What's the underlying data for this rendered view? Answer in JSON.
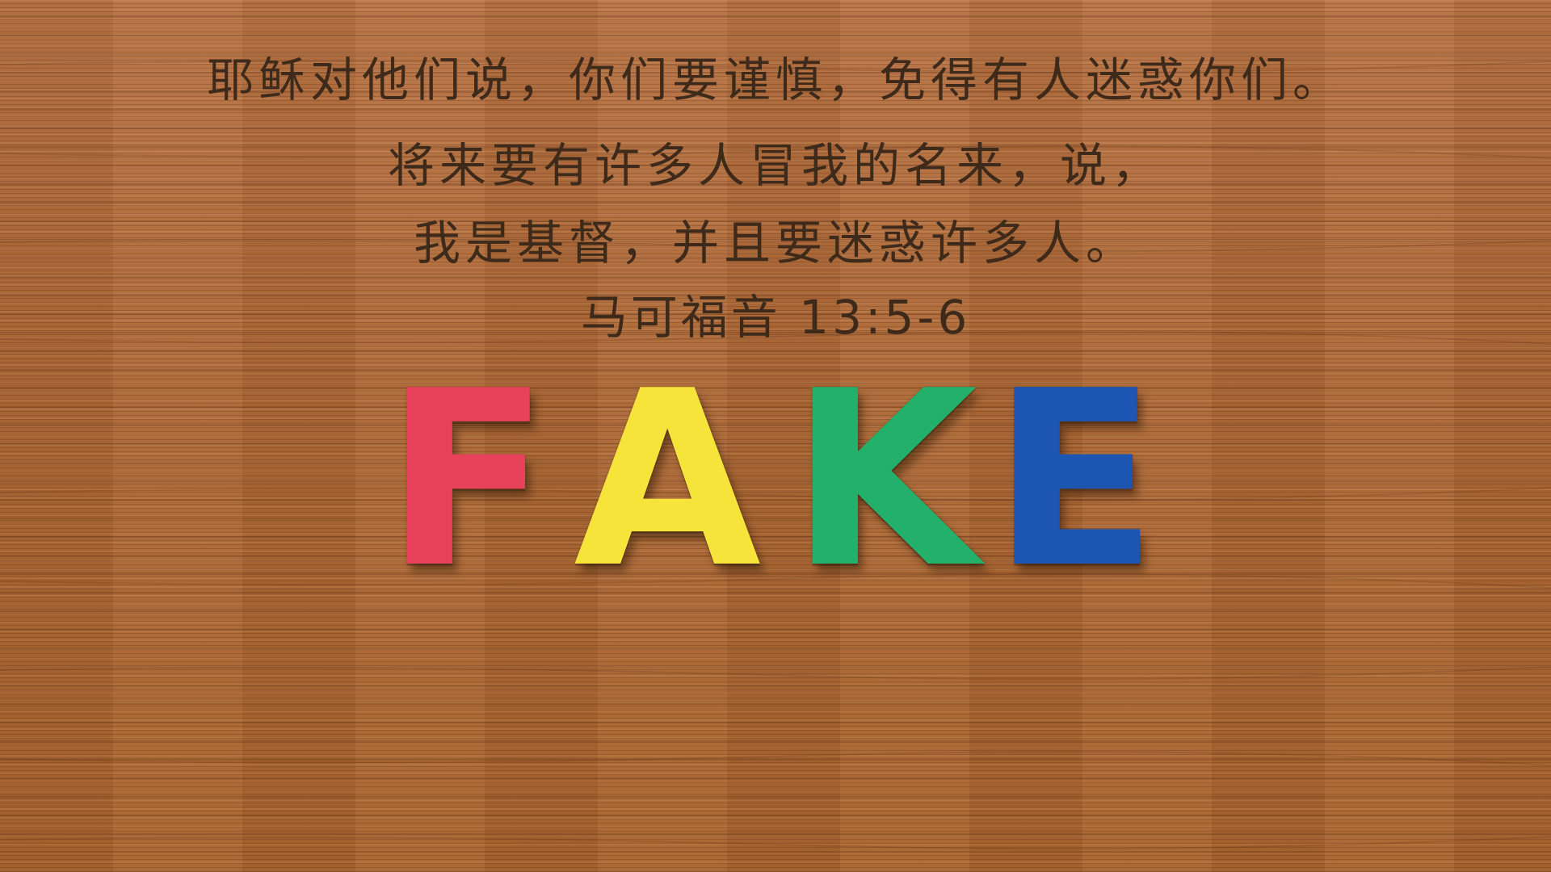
{
  "verse": {
    "line1": "耶稣对他们说，你们要谨慎，免得有人迷惑你们。",
    "line2": "将来要有许多人冒我的名来，说，",
    "line3": "我是基督，并且要迷惑许多人。",
    "reference": "马可福音 13:5-6"
  },
  "letters": [
    {
      "char": "F",
      "color": "#e8425a"
    },
    {
      "char": "A",
      "color": "#f7e43a"
    },
    {
      "char": "K",
      "color": "#22b06a"
    },
    {
      "char": "E",
      "color": "#1d55b3"
    }
  ],
  "colors": {
    "wood": "#b06a3a",
    "text": "#3e2a1a"
  }
}
